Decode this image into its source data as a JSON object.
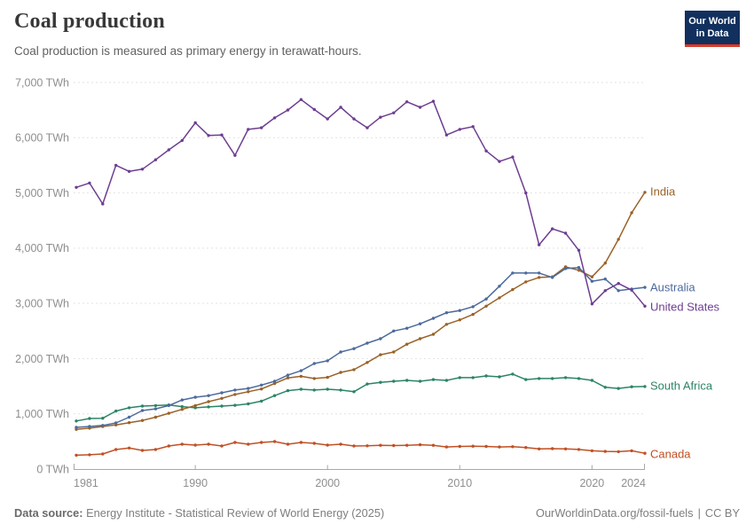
{
  "header": {
    "title": "Coal production",
    "subtitle": "Coal production is measured as primary energy in terawatt-hours.",
    "logo": {
      "line1": "Our World",
      "line2": "in Data"
    }
  },
  "footer": {
    "source_label": "Data source:",
    "source_text": "Energy Institute - Statistical Review of World Energy (2025)",
    "site_link": "OurWorldinData.org/fossil-fuels",
    "separator": "|",
    "license": "CC BY"
  },
  "colors": {
    "logo_background": "#12305e",
    "logo_accent": "#dc3927",
    "gridline": "#e2e2e2",
    "axis": "#a8a8a8",
    "tick_label": "#8f8f8f",
    "title_text": "#383838",
    "subtitle_text": "#616161",
    "footer_text": "#7e7e7e"
  },
  "chart_data": {
    "type": "line",
    "title": "Coal production",
    "subtitle": "Coal production is measured as primary energy in terawatt-hours.",
    "unit": "TWh",
    "xlabel": "",
    "ylabel": "",
    "xlim": [
      1981,
      2024
    ],
    "ylim": [
      0,
      7000
    ],
    "grid": "horizontal-dashed",
    "legend_position": "right-edge-labels",
    "x": [
      1981,
      1982,
      1983,
      1984,
      1985,
      1986,
      1987,
      1988,
      1989,
      1990,
      1991,
      1992,
      1993,
      1994,
      1995,
      1996,
      1997,
      1998,
      1999,
      2000,
      2001,
      2002,
      2003,
      2004,
      2005,
      2006,
      2007,
      2008,
      2009,
      2010,
      2011,
      2012,
      2013,
      2014,
      2015,
      2016,
      2017,
      2018,
      2019,
      2020,
      2021,
      2022,
      2023,
      2024
    ],
    "x_ticks": [
      1981,
      1990,
      2000,
      2010,
      2020,
      2024
    ],
    "y_ticks": [
      {
        "value": 0,
        "label": "0 TWh"
      },
      {
        "value": 1000,
        "label": "1,000 TWh"
      },
      {
        "value": 2000,
        "label": "2,000 TWh"
      },
      {
        "value": 3000,
        "label": "3,000 TWh"
      },
      {
        "value": 4000,
        "label": "4,000 TWh"
      },
      {
        "value": 5000,
        "label": "5,000 TWh"
      },
      {
        "value": 6000,
        "label": "6,000 TWh"
      },
      {
        "value": 7000,
        "label": "7,000 TWh"
      }
    ],
    "series": [
      {
        "name": "Canada",
        "color": "#c05024",
        "label_dy": 2,
        "values": [
          250,
          258,
          273,
          353,
          380,
          337,
          353,
          417,
          450,
          433,
          450,
          417,
          482,
          450,
          482,
          498,
          450,
          482,
          466,
          433,
          450,
          417,
          420,
          430,
          425,
          430,
          440,
          430,
          400,
          410,
          415,
          410,
          400,
          405,
          390,
          365,
          370,
          365,
          355,
          330,
          320,
          315,
          330,
          285
        ]
      },
      {
        "name": "South Africa",
        "color": "#2c8465",
        "label_dy": 0,
        "values": [
          870,
          915,
          920,
          1050,
          1110,
          1140,
          1150,
          1160,
          1130,
          1110,
          1125,
          1140,
          1155,
          1180,
          1230,
          1330,
          1420,
          1445,
          1430,
          1445,
          1430,
          1400,
          1540,
          1570,
          1590,
          1605,
          1590,
          1620,
          1605,
          1655,
          1655,
          1685,
          1670,
          1720,
          1620,
          1640,
          1640,
          1655,
          1640,
          1605,
          1480,
          1460,
          1490,
          1495
        ]
      },
      {
        "name": "India",
        "color": "#9a6227",
        "label_dy": 0,
        "values": [
          720,
          740,
          770,
          800,
          840,
          880,
          940,
          1010,
          1080,
          1150,
          1220,
          1280,
          1350,
          1400,
          1450,
          1550,
          1650,
          1680,
          1640,
          1660,
          1750,
          1800,
          1930,
          2070,
          2120,
          2260,
          2360,
          2440,
          2620,
          2700,
          2800,
          2950,
          3100,
          3250,
          3390,
          3470,
          3480,
          3660,
          3600,
          3480,
          3730,
          4160,
          4640,
          5010
        ]
      },
      {
        "name": "Australia",
        "color": "#4c6a9c",
        "label_dy": 1,
        "values": [
          755,
          770,
          790,
          835,
          940,
          1060,
          1090,
          1150,
          1250,
          1300,
          1330,
          1380,
          1430,
          1460,
          1520,
          1590,
          1700,
          1780,
          1910,
          1960,
          2120,
          2180,
          2280,
          2360,
          2500,
          2550,
          2630,
          2730,
          2830,
          2870,
          2940,
          3080,
          3310,
          3550,
          3550,
          3550,
          3470,
          3630,
          3650,
          3400,
          3440,
          3230,
          3260,
          3290
        ]
      },
      {
        "name": "United States",
        "color": "#6d3e91",
        "label_dy": 2,
        "values": [
          5100,
          5180,
          4800,
          5500,
          5390,
          5430,
          5600,
          5780,
          5950,
          6270,
          6040,
          6050,
          5680,
          6150,
          6180,
          6360,
          6500,
          6690,
          6510,
          6340,
          6550,
          6340,
          6180,
          6370,
          6450,
          6650,
          6550,
          6660,
          6050,
          6150,
          6200,
          5760,
          5570,
          5650,
          5000,
          4060,
          4350,
          4270,
          3960,
          2990,
          3230,
          3360,
          3240,
          2950
        ]
      }
    ]
  }
}
